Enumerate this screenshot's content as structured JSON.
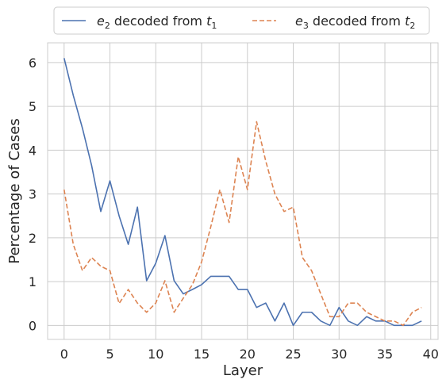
{
  "chart_data": {
    "type": "line",
    "xlabel": "Layer",
    "ylabel": "Percentage of Cases",
    "xlim": [
      -1.8,
      40.8
    ],
    "ylim": [
      -0.32,
      6.45
    ],
    "xticks": [
      0,
      5,
      10,
      15,
      20,
      25,
      30,
      35,
      40
    ],
    "yticks": [
      0,
      1,
      2,
      3,
      4,
      5,
      6
    ],
    "grid": true,
    "legend_placement": "top-center",
    "x": [
      0,
      1,
      2,
      3,
      4,
      5,
      6,
      7,
      8,
      9,
      10,
      11,
      12,
      13,
      14,
      15,
      16,
      17,
      18,
      19,
      20,
      21,
      22,
      23,
      24,
      25,
      26,
      27,
      28,
      29,
      30,
      31,
      32,
      33,
      34,
      35,
      36,
      37,
      38,
      39
    ],
    "series": [
      {
        "name_var": "e",
        "name_var_sub": "2",
        "name_text": " decoded from ",
        "name_var2": "t",
        "name_var2_sub": "1",
        "color": "#4c72b0",
        "dash": "solid",
        "values": [
          6.1,
          5.25,
          4.5,
          3.65,
          2.6,
          3.3,
          2.5,
          1.85,
          2.7,
          1.02,
          1.42,
          2.05,
          1.02,
          0.72,
          0.82,
          0.93,
          1.12,
          1.12,
          1.12,
          0.82,
          0.82,
          0.41,
          0.51,
          0.1,
          0.51,
          0.0,
          0.3,
          0.3,
          0.1,
          0.0,
          0.41,
          0.1,
          0.0,
          0.2,
          0.1,
          0.1,
          0.0,
          0.0,
          0.0,
          0.1
        ]
      },
      {
        "name_var": "e",
        "name_var_sub": "3",
        "name_text": " decoded from ",
        "name_var2": "t",
        "name_var2_sub": "2",
        "color": "#dd8452",
        "dash": "dashed",
        "values": [
          3.1,
          1.85,
          1.25,
          1.55,
          1.35,
          1.25,
          0.5,
          0.82,
          0.51,
          0.3,
          0.51,
          1.02,
          0.3,
          0.62,
          0.93,
          1.45,
          2.25,
          3.1,
          2.35,
          3.85,
          3.1,
          4.65,
          3.75,
          3.0,
          2.6,
          2.7,
          1.55,
          1.25,
          0.72,
          0.2,
          0.2,
          0.51,
          0.51,
          0.3,
          0.2,
          0.1,
          0.1,
          0.0,
          0.3,
          0.41
        ]
      }
    ]
  }
}
